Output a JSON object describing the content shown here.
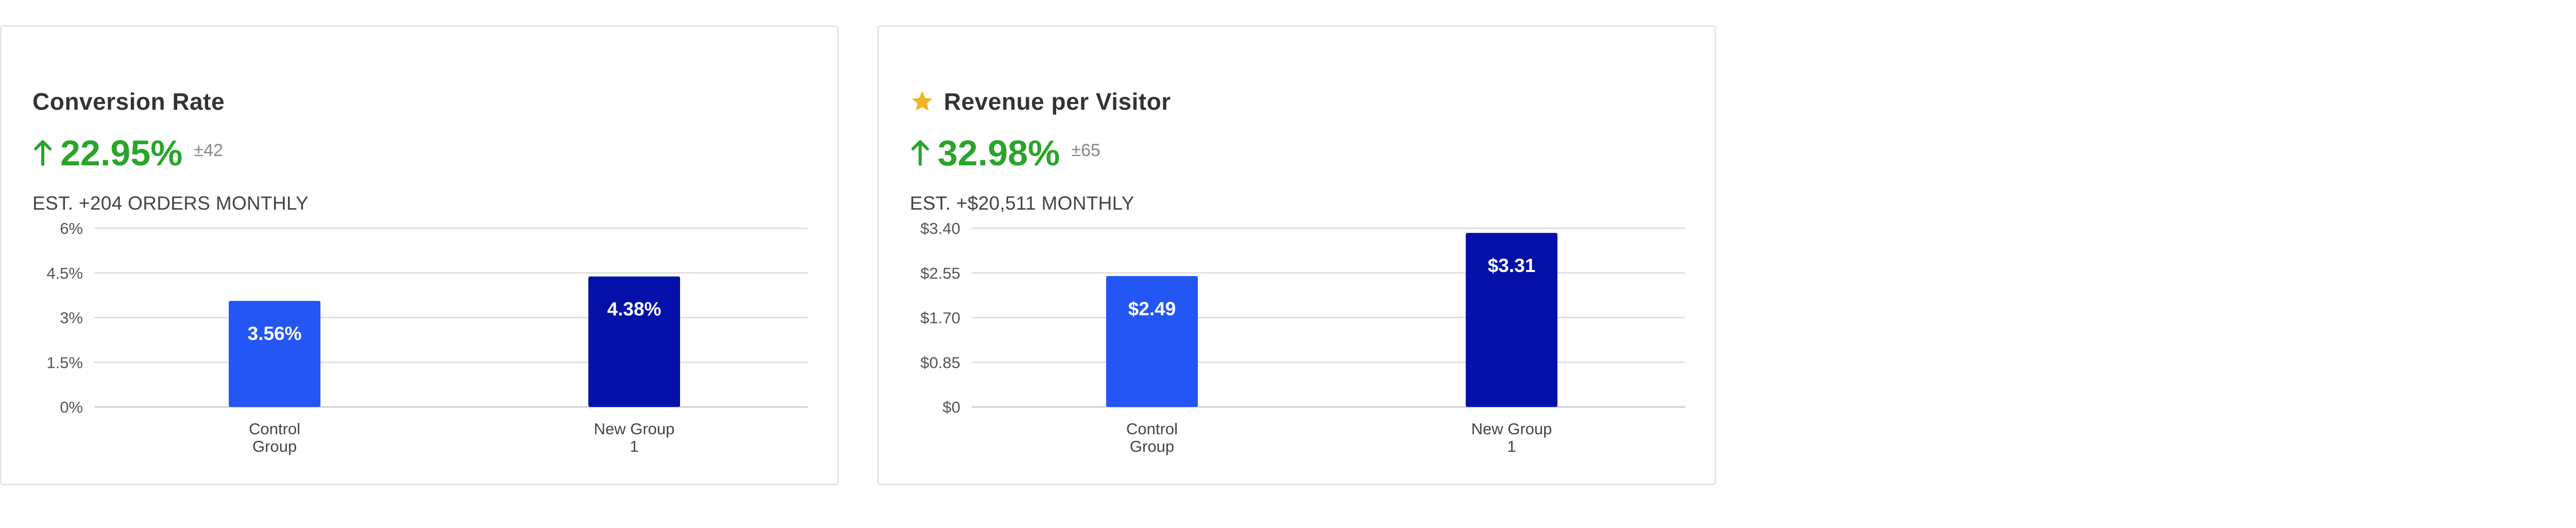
{
  "cards": [
    {
      "title": "Conversion Rate",
      "starred": false,
      "lift": "22.95%",
      "ci": "±42",
      "estimate": "EST. +204 ORDERS MONTHLY"
    },
    {
      "title": "Revenue per Visitor",
      "starred": true,
      "lift": "32.98%",
      "ci": "±65",
      "estimate": "EST. +$20,511 MONTHLY"
    }
  ],
  "colors": {
    "positive": "#2aa52a",
    "control_bar": "#2356f5",
    "variant_bar": "#0411a8",
    "star": "#f0b429",
    "gridline": "#e0e0e0",
    "axis": "#cfcfcf"
  },
  "chart_data": [
    {
      "type": "bar",
      "title": "Conversion Rate",
      "categories": [
        [
          "Control",
          "Group"
        ],
        [
          "New Group",
          "1"
        ]
      ],
      "values": [
        3.56,
        4.38
      ],
      "value_labels": [
        "3.56%",
        "4.38%"
      ],
      "yticks": [
        0,
        1.5,
        3,
        4.5,
        6
      ],
      "ytick_labels": [
        "0%",
        "1.5%",
        "3%",
        "4.5%",
        "6%"
      ],
      "ylim": [
        0,
        6
      ],
      "xlabel": "",
      "ylabel": "",
      "grid": true
    },
    {
      "type": "bar",
      "title": "Revenue per Visitor",
      "categories": [
        [
          "Control",
          "Group"
        ],
        [
          "New Group",
          "1"
        ]
      ],
      "values": [
        2.49,
        3.31
      ],
      "value_labels": [
        "$2.49",
        "$3.31"
      ],
      "yticks": [
        0,
        0.85,
        1.7,
        2.55,
        3.4
      ],
      "ytick_labels": [
        "$0",
        "$0.85",
        "$1.70",
        "$2.55",
        "$3.40"
      ],
      "ylim": [
        0,
        3.4
      ],
      "xlabel": "",
      "ylabel": "",
      "grid": true
    }
  ]
}
